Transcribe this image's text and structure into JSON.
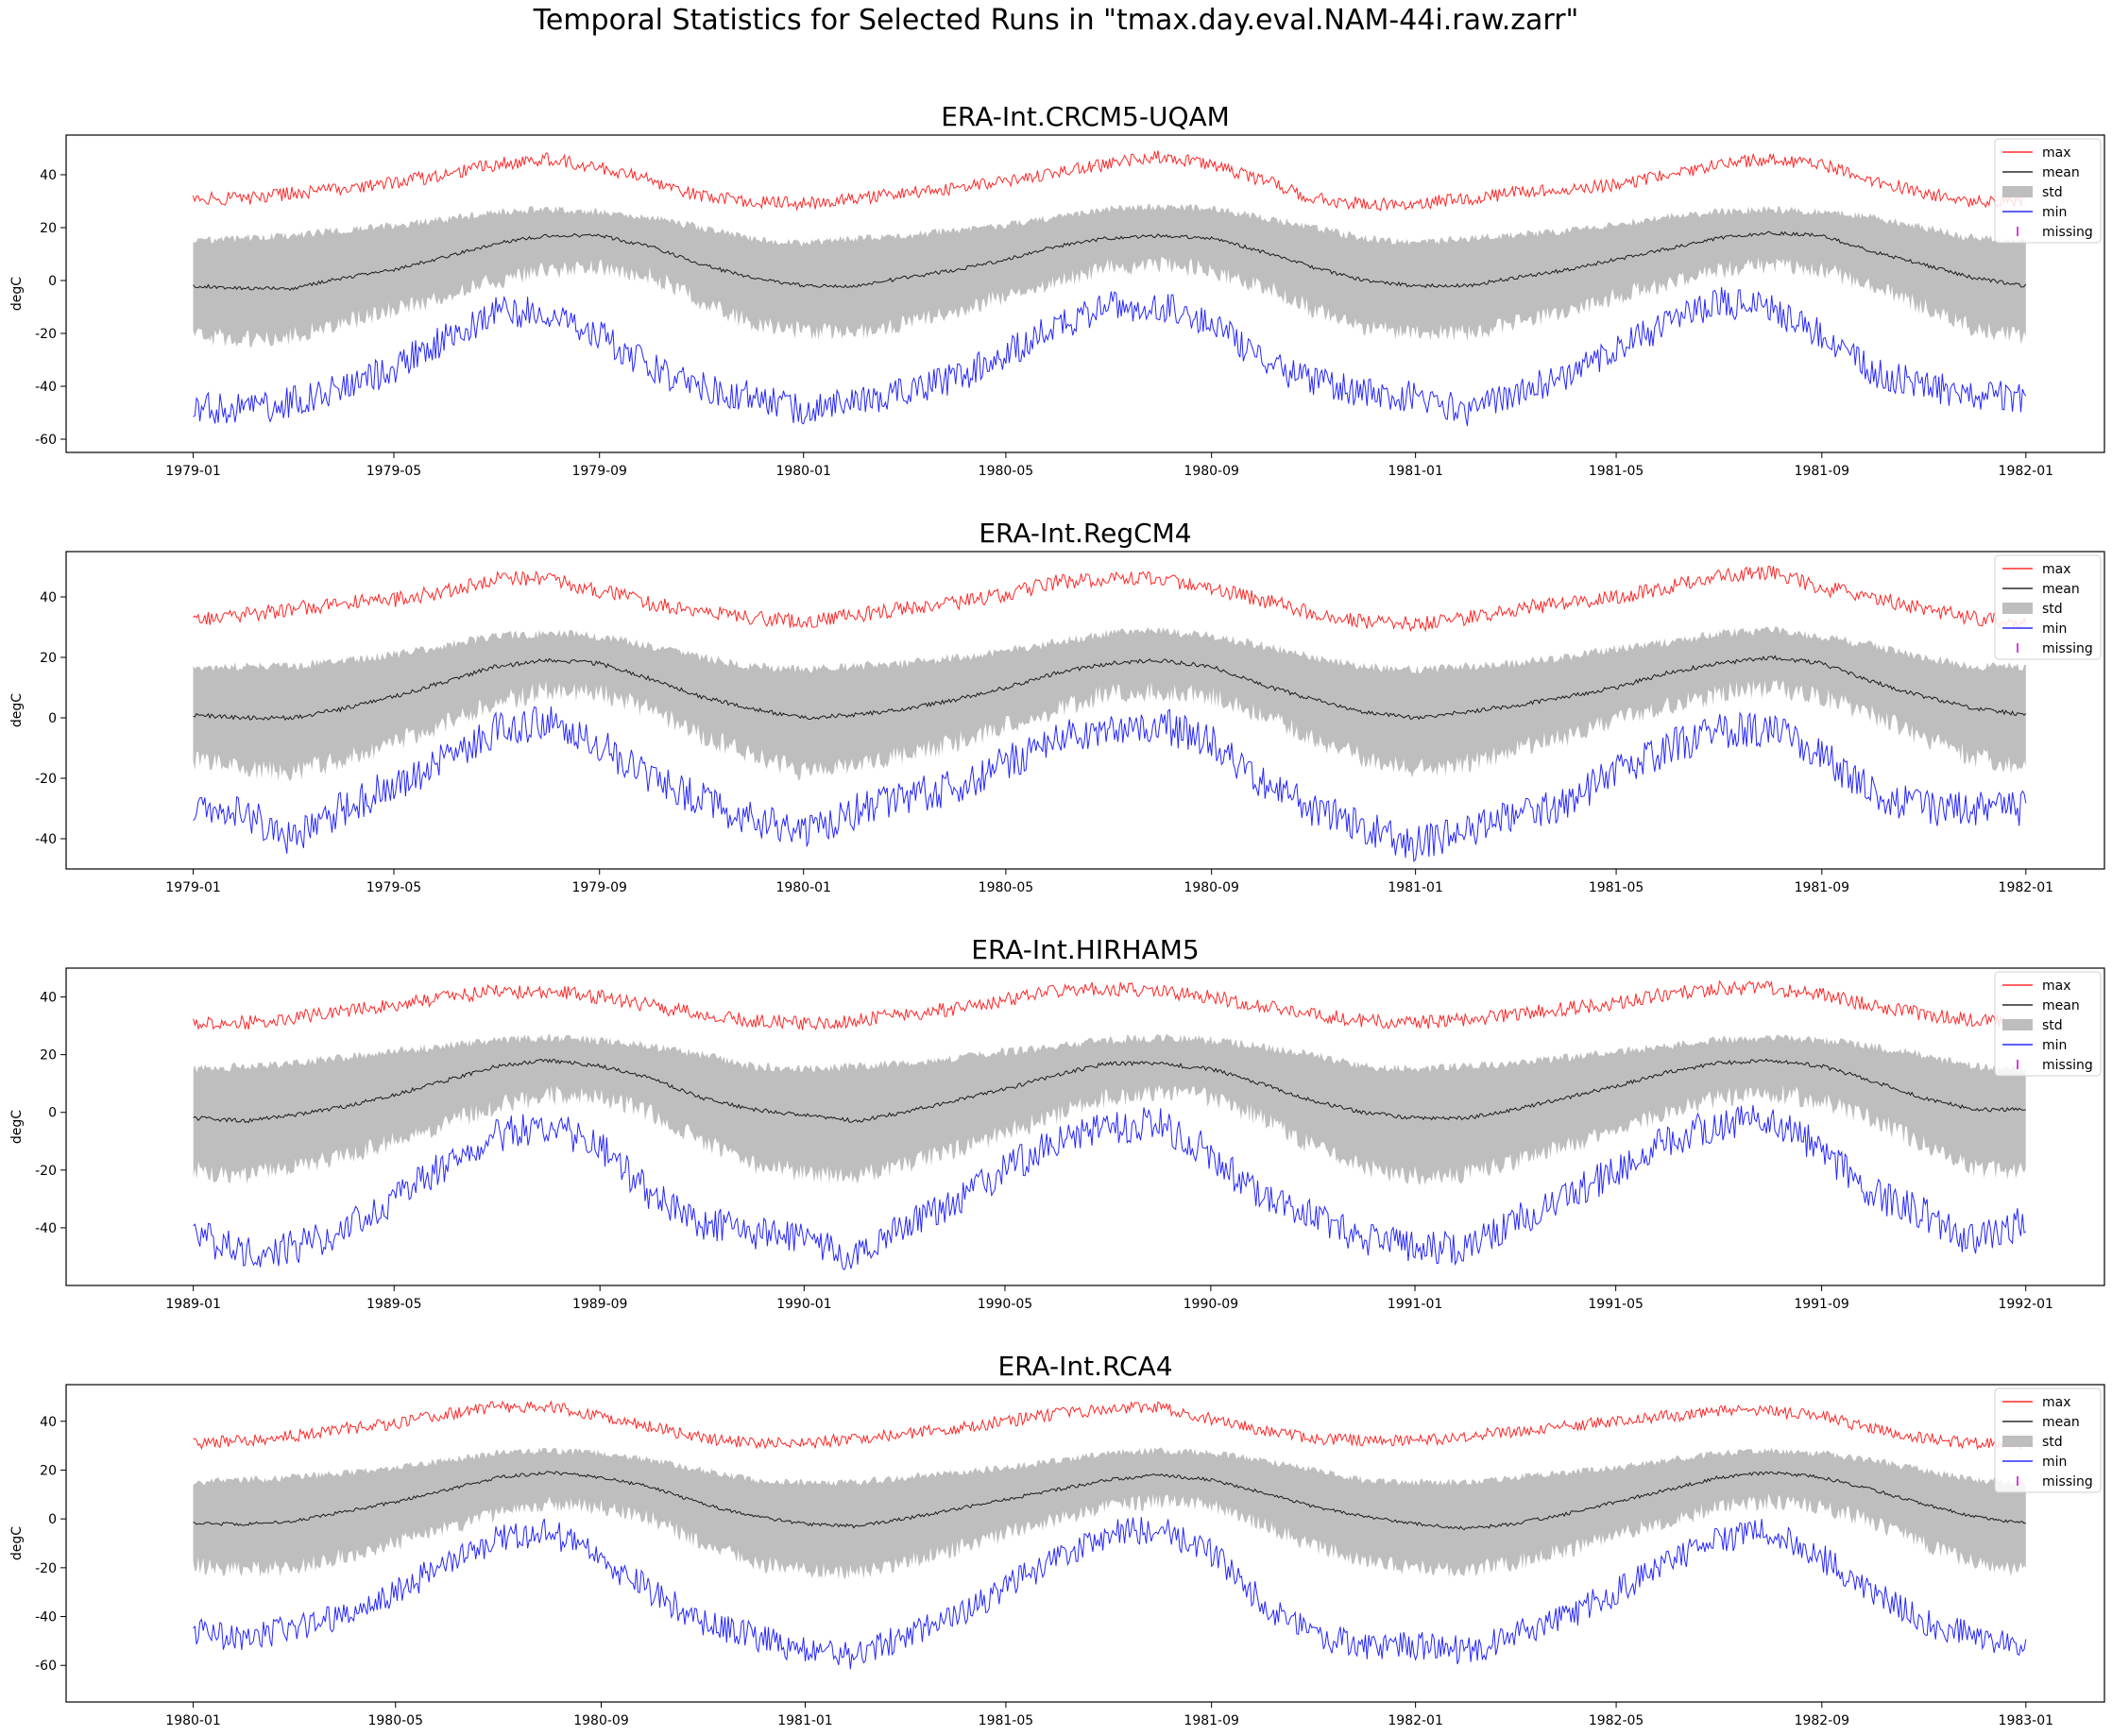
{
  "figure": {
    "title": "Temporal Statistics for Selected Runs in \"tmax.day.eval.NAM-44i.raw.zarr\""
  },
  "colors": {
    "max": "#ff0000",
    "mean": "#000000",
    "std": "#bebebe",
    "min": "#0000ff",
    "missing": "#cc00cc"
  },
  "legend": {
    "placement": "upper right",
    "items": [
      {
        "key": "max",
        "label": "max",
        "kind": "line"
      },
      {
        "key": "mean",
        "label": "mean",
        "kind": "line"
      },
      {
        "key": "std",
        "label": "std",
        "kind": "patch"
      },
      {
        "key": "min",
        "label": "min",
        "kind": "line"
      },
      {
        "key": "missing",
        "label": "missing",
        "kind": "marker"
      }
    ]
  },
  "chart_data": [
    {
      "type": "line",
      "title": "ERA-Int.CRCM5-UQAM",
      "ylabel": "degC",
      "ylim": [
        -65,
        55
      ],
      "yticks": [
        -60,
        -40,
        -20,
        0,
        20,
        40
      ],
      "xlim": [
        "1978-10-17",
        "1982-02-17"
      ],
      "xticks": [
        "1979-01",
        "1979-05",
        "1979-09",
        "1980-01",
        "1980-05",
        "1980-09",
        "1981-01",
        "1981-05",
        "1981-09",
        "1982-01"
      ],
      "series": {
        "dates": [
          "1979-01-01",
          "1979-02-01",
          "1979-03-01",
          "1979-04-01",
          "1979-05-01",
          "1979-06-01",
          "1979-07-01",
          "1979-08-01",
          "1979-09-01",
          "1979-10-01",
          "1979-11-01",
          "1979-12-01",
          "1980-01-01",
          "1980-02-01",
          "1980-03-01",
          "1980-04-01",
          "1980-05-01",
          "1980-06-01",
          "1980-07-01",
          "1980-08-01",
          "1980-09-01",
          "1980-10-01",
          "1980-11-01",
          "1980-12-01",
          "1981-01-01",
          "1981-02-01",
          "1981-03-01",
          "1981-04-01",
          "1981-05-01",
          "1981-06-01",
          "1981-07-01",
          "1981-08-01",
          "1981-09-01",
          "1981-10-01",
          "1981-11-01",
          "1981-12-01",
          "1982-01-01"
        ],
        "max": [
          31,
          31,
          33,
          35,
          37,
          40,
          44,
          46,
          43,
          38,
          32,
          30,
          29,
          31,
          33,
          35,
          38,
          41,
          44,
          47,
          44,
          38,
          31,
          29,
          29,
          31,
          33,
          35,
          36,
          40,
          44,
          46,
          44,
          38,
          33,
          30,
          30
        ],
        "mean": [
          -2,
          -3,
          -3,
          1,
          4,
          9,
          14,
          17,
          17,
          13,
          6,
          1,
          -2,
          -2,
          1,
          4,
          8,
          13,
          16,
          17,
          16,
          11,
          5,
          0,
          -2,
          -2,
          1,
          4,
          8,
          12,
          16,
          18,
          17,
          11,
          6,
          1,
          -2
        ],
        "std_upper": [
          15,
          16,
          17,
          19,
          21,
          23,
          26,
          27,
          26,
          24,
          20,
          16,
          14,
          16,
          17,
          19,
          21,
          24,
          27,
          28,
          27,
          24,
          20,
          16,
          14,
          16,
          17,
          19,
          21,
          24,
          26,
          27,
          26,
          24,
          20,
          16,
          15
        ],
        "std_lower": [
          -21,
          -22,
          -21,
          -16,
          -11,
          -6,
          0,
          4,
          5,
          2,
          -8,
          -16,
          -19,
          -20,
          -16,
          -11,
          -6,
          0,
          5,
          6,
          4,
          -2,
          -11,
          -18,
          -20,
          -20,
          -16,
          -11,
          -6,
          -1,
          4,
          6,
          4,
          -2,
          -10,
          -18,
          -21
        ],
        "min": [
          -48,
          -49,
          -46,
          -41,
          -33,
          -22,
          -12,
          -12,
          -20,
          -33,
          -40,
          -44,
          -49,
          -46,
          -42,
          -37,
          -28,
          -17,
          -10,
          -9,
          -16,
          -31,
          -38,
          -42,
          -44,
          -49,
          -42,
          -37,
          -26,
          -16,
          -8,
          -11,
          -20,
          -34,
          -40,
          -43,
          -44
        ],
        "missing": []
      }
    },
    {
      "type": "line",
      "title": "ERA-Int.RegCM4",
      "ylabel": "degC",
      "ylim": [
        -50,
        55
      ],
      "yticks": [
        -40,
        -20,
        0,
        20,
        40
      ],
      "xlim": [
        "1978-10-17",
        "1982-02-17"
      ],
      "xticks": [
        "1979-01",
        "1979-05",
        "1979-09",
        "1980-01",
        "1980-05",
        "1980-09",
        "1981-01",
        "1981-05",
        "1981-09",
        "1982-01"
      ],
      "series": {
        "dates": [
          "1979-01-01",
          "1979-02-01",
          "1979-03-01",
          "1979-04-01",
          "1979-05-01",
          "1979-06-01",
          "1979-07-01",
          "1979-08-01",
          "1979-09-01",
          "1979-10-01",
          "1979-11-01",
          "1979-12-01",
          "1980-01-01",
          "1980-02-01",
          "1980-03-01",
          "1980-04-01",
          "1980-05-01",
          "1980-06-01",
          "1980-07-01",
          "1980-08-01",
          "1980-09-01",
          "1980-10-01",
          "1980-11-01",
          "1980-12-01",
          "1981-01-01",
          "1981-02-01",
          "1981-03-01",
          "1981-04-01",
          "1981-05-01",
          "1981-06-01",
          "1981-07-01",
          "1981-08-01",
          "1981-09-01",
          "1981-10-01",
          "1981-11-01",
          "1981-12-01",
          "1982-01-01"
        ],
        "max": [
          32,
          34,
          36,
          38,
          39,
          42,
          46,
          46,
          42,
          38,
          35,
          33,
          32,
          34,
          36,
          38,
          41,
          45,
          46,
          46,
          43,
          39,
          35,
          32,
          31,
          33,
          36,
          38,
          40,
          43,
          47,
          48,
          43,
          40,
          36,
          33,
          32
        ],
        "mean": [
          1,
          0,
          0,
          3,
          7,
          12,
          17,
          19,
          18,
          13,
          7,
          3,
          0,
          1,
          3,
          6,
          10,
          15,
          18,
          19,
          17,
          11,
          6,
          2,
          0,
          2,
          4,
          7,
          10,
          15,
          18,
          20,
          18,
          12,
          7,
          3,
          1
        ],
        "std_upper": [
          16,
          17,
          17,
          19,
          21,
          24,
          27,
          28,
          27,
          24,
          20,
          17,
          16,
          17,
          18,
          20,
          22,
          25,
          28,
          29,
          27,
          24,
          20,
          17,
          16,
          17,
          18,
          20,
          23,
          25,
          28,
          29,
          27,
          24,
          20,
          17,
          17
        ],
        "std_lower": [
          -14,
          -17,
          -18,
          -14,
          -8,
          -2,
          5,
          9,
          8,
          3,
          -6,
          -12,
          -18,
          -16,
          -12,
          -8,
          -3,
          3,
          8,
          9,
          7,
          1,
          -7,
          -13,
          -17,
          -15,
          -11,
          -6,
          -1,
          4,
          8,
          10,
          7,
          1,
          -7,
          -13,
          -16
        ],
        "min": [
          -28,
          -32,
          -40,
          -30,
          -22,
          -14,
          -4,
          -1,
          -9,
          -20,
          -27,
          -34,
          -38,
          -31,
          -26,
          -23,
          -15,
          -7,
          -3,
          -2,
          -8,
          -22,
          -30,
          -36,
          -42,
          -37,
          -33,
          -28,
          -18,
          -10,
          -4,
          -4,
          -12,
          -25,
          -30,
          -30,
          -30
        ],
        "missing": []
      }
    },
    {
      "type": "line",
      "title": "ERA-Int.HIRHAM5",
      "ylabel": "degC",
      "ylim": [
        -60,
        50
      ],
      "yticks": [
        -40,
        -20,
        0,
        20,
        40
      ],
      "xlim": [
        "1988-10-17",
        "1992-02-17"
      ],
      "xticks": [
        "1989-01",
        "1989-05",
        "1989-09",
        "1990-01",
        "1990-05",
        "1990-09",
        "1991-01",
        "1991-05",
        "1991-09",
        "1992-01"
      ],
      "series": {
        "dates": [
          "1989-01-01",
          "1989-02-01",
          "1989-03-01",
          "1989-04-01",
          "1989-05-01",
          "1989-06-01",
          "1989-07-01",
          "1989-08-01",
          "1989-09-01",
          "1989-10-01",
          "1989-11-01",
          "1989-12-01",
          "1990-01-01",
          "1990-02-01",
          "1990-03-01",
          "1990-04-01",
          "1990-05-01",
          "1990-06-01",
          "1990-07-01",
          "1990-08-01",
          "1990-09-01",
          "1990-10-01",
          "1990-11-01",
          "1990-12-01",
          "1991-01-01",
          "1991-02-01",
          "1991-03-01",
          "1991-04-01",
          "1991-05-01",
          "1991-06-01",
          "1991-07-01",
          "1991-08-01",
          "1991-09-01",
          "1991-10-01",
          "1991-11-01",
          "1991-12-01",
          "1992-01-01"
        ],
        "max": [
          31,
          31,
          33,
          35,
          37,
          40,
          42,
          42,
          40,
          37,
          34,
          32,
          31,
          32,
          34,
          36,
          39,
          42,
          43,
          42,
          40,
          37,
          34,
          32,
          31,
          32,
          34,
          36,
          38,
          41,
          43,
          43,
          41,
          37,
          34,
          32,
          31
        ],
        "mean": [
          -2,
          -3,
          -1,
          2,
          6,
          11,
          16,
          18,
          16,
          12,
          5,
          1,
          -1,
          -3,
          0,
          4,
          8,
          13,
          17,
          17,
          15,
          10,
          4,
          0,
          -2,
          -2,
          1,
          5,
          9,
          14,
          17,
          18,
          16,
          11,
          5,
          1,
          1
        ],
        "std_upper": [
          15,
          16,
          17,
          19,
          21,
          23,
          25,
          26,
          25,
          23,
          20,
          16,
          15,
          16,
          17,
          19,
          21,
          23,
          25,
          26,
          25,
          23,
          20,
          16,
          15,
          16,
          17,
          19,
          21,
          23,
          25,
          26,
          25,
          23,
          20,
          16,
          15
        ],
        "std_lower": [
          -20,
          -22,
          -19,
          -15,
          -10,
          -4,
          2,
          6,
          5,
          0,
          -10,
          -18,
          -21,
          -22,
          -18,
          -13,
          -7,
          -1,
          5,
          7,
          5,
          -2,
          -12,
          -19,
          -22,
          -21,
          -17,
          -12,
          -6,
          0,
          5,
          7,
          4,
          -2,
          -11,
          -19,
          -21
        ],
        "min": [
          -43,
          -48,
          -47,
          -41,
          -30,
          -18,
          -8,
          -4,
          -12,
          -28,
          -38,
          -42,
          -44,
          -50,
          -40,
          -32,
          -20,
          -10,
          -5,
          -4,
          -14,
          -30,
          -36,
          -44,
          -46,
          -47,
          -38,
          -30,
          -20,
          -10,
          -4,
          -2,
          -13,
          -28,
          -35,
          -45,
          -38
        ],
        "missing": []
      }
    },
    {
      "type": "line",
      "title": "ERA-Int.RCA4",
      "ylabel": "degC",
      "ylim": [
        -75,
        55
      ],
      "yticks": [
        -60,
        -40,
        -20,
        0,
        20,
        40
      ],
      "xlim": [
        "1979-10-17",
        "1983-02-17"
      ],
      "xticks": [
        "1980-01",
        "1980-05",
        "1980-09",
        "1981-01",
        "1981-05",
        "1981-09",
        "1982-01",
        "1982-05",
        "1982-09",
        "1983-01"
      ],
      "series": {
        "dates": [
          "1980-01-01",
          "1980-02-01",
          "1980-03-01",
          "1980-04-01",
          "1980-05-01",
          "1980-06-01",
          "1980-07-01",
          "1980-08-01",
          "1980-09-01",
          "1980-10-01",
          "1980-11-01",
          "1980-12-01",
          "1981-01-01",
          "1981-02-01",
          "1981-03-01",
          "1981-04-01",
          "1981-05-01",
          "1981-06-01",
          "1981-07-01",
          "1981-08-01",
          "1981-09-01",
          "1981-10-01",
          "1981-11-01",
          "1981-12-01",
          "1982-01-01",
          "1982-02-01",
          "1982-03-01",
          "1982-04-01",
          "1982-05-01",
          "1982-06-01",
          "1982-07-01",
          "1982-08-01",
          "1982-09-01",
          "1982-10-01",
          "1982-11-01",
          "1982-12-01",
          "1983-01-01"
        ],
        "max": [
          31,
          32,
          34,
          37,
          39,
          43,
          46,
          46,
          42,
          38,
          33,
          31,
          31,
          33,
          35,
          37,
          40,
          43,
          45,
          46,
          41,
          36,
          33,
          32,
          32,
          34,
          36,
          38,
          40,
          42,
          44,
          44,
          42,
          37,
          33,
          31,
          31
        ],
        "mean": [
          -2,
          -2,
          -1,
          3,
          7,
          12,
          17,
          19,
          17,
          13,
          6,
          1,
          -2,
          -3,
          0,
          4,
          8,
          12,
          16,
          18,
          16,
          11,
          5,
          1,
          -2,
          -4,
          -2,
          2,
          7,
          12,
          17,
          19,
          17,
          12,
          6,
          1,
          -2
        ],
        "std_upper": [
          15,
          16,
          17,
          19,
          21,
          24,
          27,
          28,
          27,
          24,
          20,
          16,
          15,
          15,
          17,
          19,
          21,
          24,
          27,
          28,
          27,
          24,
          20,
          16,
          15,
          15,
          17,
          19,
          21,
          24,
          27,
          28,
          27,
          24,
          20,
          16,
          15
        ],
        "std_lower": [
          -19,
          -21,
          -20,
          -15,
          -10,
          -4,
          2,
          6,
          5,
          0,
          -10,
          -18,
          -21,
          -22,
          -18,
          -12,
          -6,
          0,
          5,
          7,
          5,
          -2,
          -11,
          -17,
          -20,
          -21,
          -18,
          -13,
          -7,
          -1,
          5,
          7,
          5,
          -1,
          -10,
          -18,
          -21
        ],
        "min": [
          -46,
          -50,
          -44,
          -40,
          -30,
          -18,
          -8,
          -5,
          -16,
          -30,
          -42,
          -48,
          -54,
          -56,
          -48,
          -40,
          -28,
          -16,
          -6,
          -4,
          -14,
          -34,
          -48,
          -52,
          -52,
          -54,
          -48,
          -40,
          -30,
          -18,
          -8,
          -5,
          -16,
          -30,
          -42,
          -48,
          -54
        ],
        "missing": []
      }
    }
  ]
}
